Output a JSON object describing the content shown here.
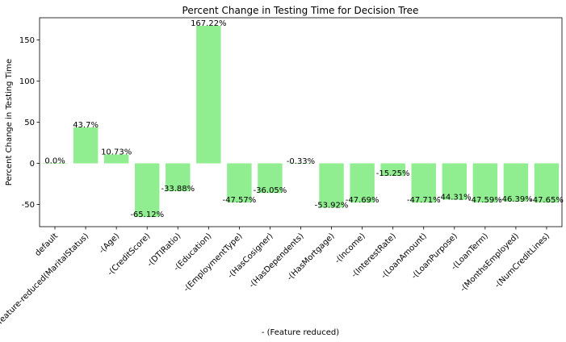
{
  "chart_data": {
    "type": "bar",
    "title": "Percent Change in Testing Time for Decision Tree",
    "xlabel": "- (Feature reduced)",
    "ylabel": "Percent Change in Testing Time",
    "ylim": [
      -77,
      177
    ],
    "yticks": [
      -50,
      0,
      50,
      100,
      150
    ],
    "grid": false,
    "bar_color": "#90ee90",
    "categories": [
      "default",
      "feature-reduced(MaritalStatus)",
      "-(Age)",
      "-(CreditScore)",
      "-(DTIRatio)",
      "-(Education)",
      "-(EmploymentType)",
      "-(HasCosigner)",
      "-(HasDependents)",
      "-(HasMortgage)",
      "-(Income)",
      "-(InterestRate)",
      "-(LoanAmount)",
      "-(LoanPurpose)",
      "-(LoanTerm)",
      "-(MonthsEmployed)",
      "-(NumCreditLines)"
    ],
    "values": [
      0.0,
      43.7,
      10.73,
      -65.12,
      -33.88,
      167.22,
      -47.57,
      -36.05,
      -0.33,
      -53.92,
      -47.69,
      -15.25,
      -47.71,
      -44.31,
      -47.59,
      -46.39,
      -47.65
    ],
    "data_labels": [
      "0.0%",
      "43.7%",
      "10.73%",
      "-65.12%",
      "-33.88%",
      "167.22%",
      "-47.57%",
      "-36.05%",
      "-0.33%",
      "-53.92%",
      "-47.69%",
      "-15.25%",
      "-47.71%",
      "-44.31%",
      "-47.59%",
      "-46.39%",
      "-47.65%"
    ]
  }
}
